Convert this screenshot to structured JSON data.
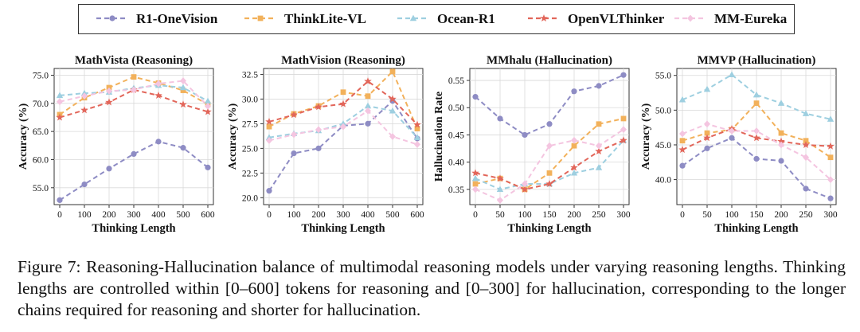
{
  "legend": {
    "items": [
      {
        "name": "R1-OneVision",
        "color": "#8E8CC4",
        "marker": "circle"
      },
      {
        "name": "ThinkLite-VL",
        "color": "#F2B15B",
        "marker": "square"
      },
      {
        "name": "Ocean-R1",
        "color": "#9ECFE0",
        "marker": "triangle"
      },
      {
        "name": "OpenVLThinker",
        "color": "#E2665A",
        "marker": "star"
      },
      {
        "name": "MM-Eureka",
        "color": "#F4C5E0",
        "marker": "diamond"
      }
    ]
  },
  "chart_data": [
    {
      "type": "line",
      "title": "MathVista (Reasoning)",
      "xlabel": "Thinking Length",
      "ylabel": "Accuracy (%)",
      "x": [
        0,
        100,
        200,
        300,
        400,
        500,
        600
      ],
      "xticks": [
        "0",
        "100",
        "200",
        "300",
        "400",
        "500",
        "600"
      ],
      "yticks": [
        55.0,
        60.0,
        65.0,
        70.0,
        75.0
      ],
      "ytick_labels": [
        "55.0",
        "60.0",
        "65.0",
        "70.0",
        "75.0"
      ],
      "ylim": [
        52.0,
        76.2
      ],
      "series": [
        {
          "name": "R1-OneVision",
          "values": [
            52.8,
            55.6,
            58.4,
            61.0,
            63.2,
            62.1,
            58.6
          ]
        },
        {
          "name": "ThinkLite-VL",
          "values": [
            68.0,
            71.0,
            72.8,
            74.7,
            73.6,
            72.3,
            69.8
          ]
        },
        {
          "name": "Ocean-R1",
          "values": [
            71.4,
            71.8,
            72.0,
            72.7,
            73.2,
            72.8,
            70.4
          ]
        },
        {
          "name": "OpenVLThinker",
          "values": [
            67.5,
            68.8,
            70.2,
            72.4,
            71.4,
            69.8,
            68.5
          ]
        },
        {
          "name": "MM-Eureka",
          "values": [
            70.3,
            71.3,
            72.2,
            72.4,
            73.5,
            74.0,
            69.5
          ]
        }
      ]
    },
    {
      "type": "line",
      "title": "MathVision (Reasoning)",
      "xlabel": "Thinking Length",
      "ylabel": "Accuracy (%)",
      "x": [
        0,
        100,
        200,
        300,
        400,
        500,
        600
      ],
      "xticks": [
        "0",
        "100",
        "200",
        "300",
        "400",
        "500",
        "600"
      ],
      "yticks": [
        20.0,
        22.5,
        25.0,
        27.5,
        30.0,
        32.5
      ],
      "ytick_labels": [
        "20.0",
        "22.5",
        "25.0",
        "27.5",
        "30.0",
        "32.5"
      ],
      "ylim": [
        19.3,
        33.1
      ],
      "series": [
        {
          "name": "R1-OneVision",
          "values": [
            20.7,
            24.5,
            25.0,
            27.3,
            27.5,
            29.8,
            26.0
          ]
        },
        {
          "name": "ThinkLite-VL",
          "values": [
            27.2,
            28.5,
            29.3,
            30.7,
            30.3,
            32.8,
            27.0
          ]
        },
        {
          "name": "Ocean-R1",
          "values": [
            26.1,
            26.5,
            26.8,
            27.5,
            29.3,
            28.8,
            26.1
          ]
        },
        {
          "name": "OpenVLThinker",
          "values": [
            27.7,
            28.4,
            29.2,
            29.5,
            31.8,
            30.0,
            27.4
          ]
        },
        {
          "name": "MM-Eureka",
          "values": [
            25.8,
            26.4,
            26.9,
            27.2,
            28.8,
            26.2,
            25.4
          ]
        }
      ]
    },
    {
      "type": "line",
      "title": "MMhalu (Hallucination)",
      "xlabel": "Thinking Length",
      "ylabel": "Hallucination Rate",
      "x": [
        0,
        50,
        100,
        150,
        200,
        250,
        300
      ],
      "xticks": [
        "0",
        "50",
        "100",
        "150",
        "200",
        "250",
        "300"
      ],
      "yticks": [
        0.35,
        0.4,
        0.45,
        0.5,
        0.55
      ],
      "ytick_labels": [
        "0.35",
        "0.40",
        "0.45",
        "0.50",
        "0.55"
      ],
      "ylim": [
        0.322,
        0.572
      ],
      "series": [
        {
          "name": "R1-OneVision",
          "values": [
            0.52,
            0.48,
            0.45,
            0.47,
            0.53,
            0.54,
            0.56
          ]
        },
        {
          "name": "ThinkLite-VL",
          "values": [
            0.36,
            0.37,
            0.35,
            0.38,
            0.43,
            0.47,
            0.48
          ]
        },
        {
          "name": "Ocean-R1",
          "values": [
            0.37,
            0.35,
            0.36,
            0.36,
            0.38,
            0.39,
            0.44
          ]
        },
        {
          "name": "OpenVLThinker",
          "values": [
            0.38,
            0.37,
            0.35,
            0.36,
            0.39,
            0.42,
            0.44
          ]
        },
        {
          "name": "MM-Eureka",
          "values": [
            0.35,
            0.33,
            0.36,
            0.43,
            0.44,
            0.43,
            0.46
          ]
        }
      ]
    },
    {
      "type": "line",
      "title": "MMVP (Hallucination)",
      "xlabel": "Thinking Length",
      "ylabel": "Accuracy (%)",
      "x": [
        0,
        50,
        100,
        150,
        200,
        250,
        300
      ],
      "xticks": [
        "0",
        "50",
        "100",
        "150",
        "200",
        "250",
        "300"
      ],
      "yticks": [
        40.0,
        45.0,
        50.0,
        55.0
      ],
      "ytick_labels": [
        "40.0",
        "45.0",
        "50.0",
        "55.0"
      ],
      "ylim": [
        36.4,
        56.0
      ],
      "series": [
        {
          "name": "R1-OneVision",
          "values": [
            42.0,
            44.5,
            46.0,
            43.0,
            42.7,
            38.7,
            37.3
          ]
        },
        {
          "name": "ThinkLite-VL",
          "values": [
            45.6,
            46.7,
            47.2,
            51.0,
            46.7,
            45.6,
            43.2
          ]
        },
        {
          "name": "Ocean-R1",
          "values": [
            51.5,
            53.0,
            55.1,
            52.2,
            51.0,
            49.5,
            48.7
          ]
        },
        {
          "name": "OpenVLThinker",
          "values": [
            44.3,
            46.0,
            47.3,
            46.0,
            45.5,
            45.0,
            44.8
          ]
        },
        {
          "name": "MM-Eureka",
          "values": [
            46.6,
            48.0,
            47.0,
            47.0,
            45.0,
            43.2,
            40.0
          ]
        }
      ]
    }
  ],
  "caption": {
    "label": "Figure 7:",
    "text": "Reasoning-Hallucination balance of multimodal reasoning models under varying reasoning lengths.  Thinking lengths are controlled within [0–600] tokens for reasoning and [0–300] for hallucination, corresponding to the longer chains required for reasoning and shorter for hallucination."
  }
}
